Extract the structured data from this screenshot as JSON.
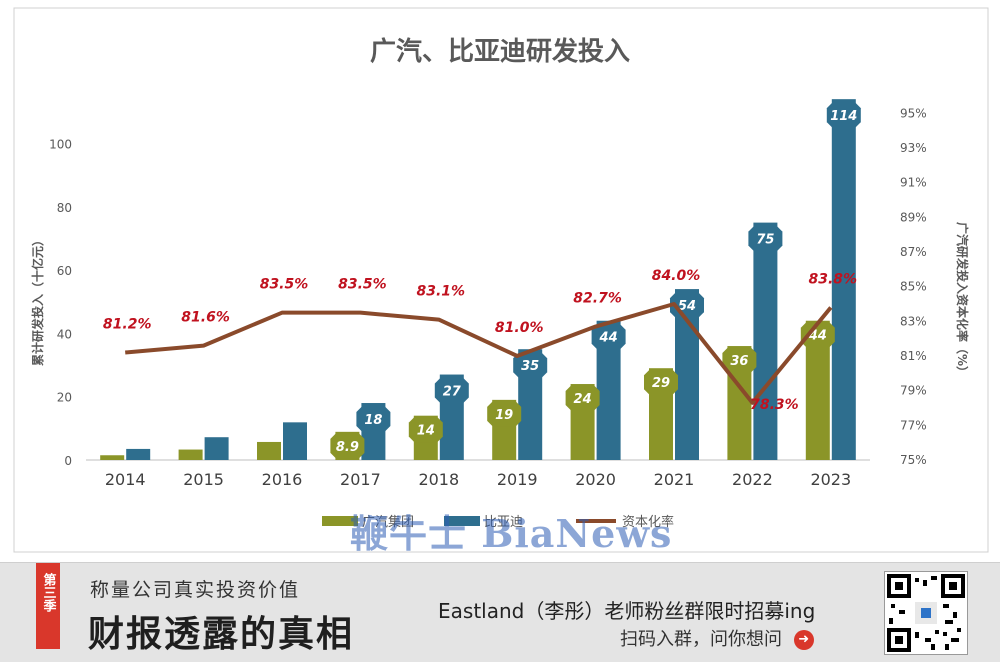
{
  "chart_data": {
    "type": "bar",
    "title": "广汽、比亚迪研发投入",
    "ylabel": "累计研发投入（十亿元）",
    "y2label": "广汽研发投入资本化率（%）",
    "categories": [
      "2014",
      "2015",
      "2016",
      "2017",
      "2018",
      "2019",
      "2020",
      "2021",
      "2022",
      "2023"
    ],
    "ylim": [
      0,
      115
    ],
    "yticks": [
      0,
      20,
      40,
      60,
      80,
      100
    ],
    "y2lim": [
      75,
      96
    ],
    "y2ticks": [
      "75%",
      "77%",
      "79%",
      "81%",
      "83%",
      "85%",
      "87%",
      "89%",
      "91%",
      "93%",
      "95%"
    ],
    "series": [
      {
        "name": "广汽集团",
        "type": "bar",
        "color": "#8b9528",
        "values": [
          1.5,
          3.3,
          5.7,
          8.9,
          14,
          19,
          24,
          29,
          36,
          44
        ],
        "labels": [
          "",
          "",
          "",
          "8.9",
          "14",
          "19",
          "24",
          "29",
          "36",
          "44"
        ]
      },
      {
        "name": "比亚迪",
        "type": "bar",
        "color": "#2e6e8e",
        "values": [
          3.5,
          7.2,
          11.9,
          18,
          27,
          35,
          44,
          54,
          75,
          114
        ],
        "labels": [
          "",
          "",
          "",
          "18",
          "27",
          "35",
          "44",
          "54",
          "75",
          "114"
        ]
      },
      {
        "name": "资本化率",
        "type": "line",
        "axis": "right",
        "color": "#8a4a2b",
        "values": [
          81.2,
          81.6,
          83.5,
          83.5,
          83.1,
          81.0,
          82.7,
          84.0,
          78.3,
          83.8
        ],
        "labels": [
          "81.2%",
          "81.6%",
          "83.5%",
          "83.5%",
          "83.1%",
          "81.0%",
          "82.7%",
          "84.0%",
          "78.3%",
          "83.8%"
        ]
      }
    ],
    "legend": {
      "position": "bottom"
    },
    "grid": false
  },
  "watermark": "鞭牛士 BiaNews",
  "banner": {
    "season_tag": "第三季",
    "slogan": "称量公司真实投资价值",
    "headline": "财报透露的真相",
    "recruit": "Eastland（李彤）老师粉丝群限时招募ing",
    "scan": "扫码入群，问你想问",
    "arrow_icon": "arrow-right-icon",
    "accent": "#d9372b"
  }
}
